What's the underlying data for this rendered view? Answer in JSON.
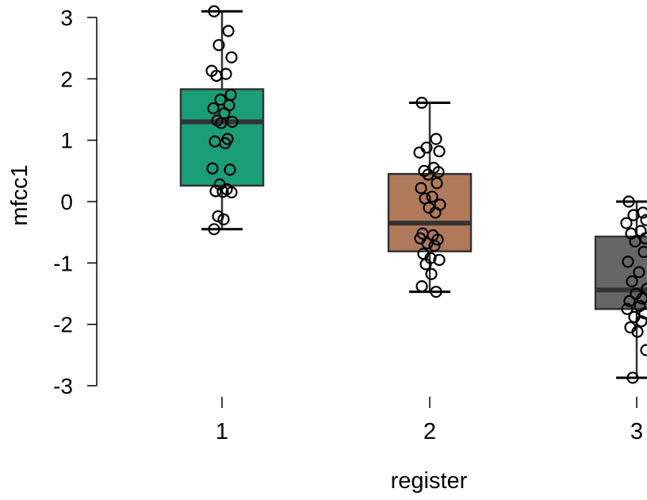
{
  "chart_data": {
    "type": "box",
    "xlabel": "register",
    "ylabel": "mfcc1",
    "ylim": [
      -3,
      3
    ],
    "yticks": [
      -3,
      -2,
      -1,
      0,
      1,
      2,
      3
    ],
    "categories": [
      "1",
      "2",
      "3"
    ],
    "boxes": [
      {
        "category": "1",
        "color": "#1b9e77",
        "whisker_low": -0.45,
        "q1": 0.26,
        "median": 1.3,
        "q3": 1.83,
        "whisker_high": 3.1,
        "points": [
          3.1,
          2.78,
          2.55,
          2.35,
          2.13,
          2.08,
          2.05,
          1.74,
          1.66,
          1.57,
          1.52,
          1.44,
          1.32,
          1.3,
          1.28,
          1.02,
          0.98,
          0.95,
          0.54,
          0.52,
          0.28,
          0.2,
          0.17,
          0.16,
          0.15,
          -0.24,
          -0.29,
          -0.45
        ]
      },
      {
        "category": "2",
        "color": "#b07a5a",
        "whisker_low": -1.47,
        "q1": -0.81,
        "median": -0.35,
        "q3": 0.45,
        "whisker_high": 1.61,
        "points": [
          1.61,
          1.02,
          0.88,
          0.82,
          0.8,
          0.55,
          0.5,
          0.48,
          0.44,
          0.3,
          0.22,
          0.08,
          0.05,
          -0.05,
          -0.1,
          -0.18,
          -0.52,
          -0.55,
          -0.6,
          -0.62,
          -0.68,
          -0.72,
          -0.85,
          -0.92,
          -0.95,
          -1.02,
          -1.18,
          -1.38,
          -1.47
        ]
      },
      {
        "category": "3",
        "color": "#666666",
        "whisker_low": -2.87,
        "q1": -1.75,
        "median": -1.44,
        "q3": -0.57,
        "whisker_high": 0.0,
        "points": [
          0.0,
          -0.18,
          -0.22,
          -0.3,
          -0.35,
          -0.48,
          -0.52,
          -0.6,
          -0.65,
          -0.82,
          -0.98,
          -1.15,
          -1.3,
          -1.42,
          -1.5,
          -1.58,
          -1.62,
          -1.7,
          -1.75,
          -1.82,
          -1.88,
          -1.95,
          -2.05,
          -2.12,
          -2.42,
          -2.87
        ]
      }
    ]
  }
}
